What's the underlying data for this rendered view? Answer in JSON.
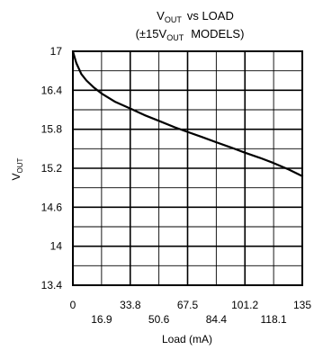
{
  "chart_data": {
    "type": "line",
    "title_line1_main": "V",
    "title_line1_sub": "OUT",
    "title_line1_rest": "vs LOAD",
    "title_line2_pre": "(±15V",
    "title_line2_sub": "OUT",
    "title_line2_rest": "MODELS)",
    "ylabel_main": "V",
    "ylabel_sub": "OUT",
    "xlabel": "Load (mA)",
    "xlim": [
      0,
      135
    ],
    "ylim": [
      13.4,
      17
    ],
    "x_ticks_upper": [
      "0",
      "33.8",
      "67.5",
      "101.2",
      "135"
    ],
    "x_ticks_lower": [
      "16.9",
      "50.6",
      "84.4",
      "118.1"
    ],
    "y_ticks": [
      "17",
      "16.4",
      "15.8",
      "15.2",
      "14.6",
      "14",
      "13.4"
    ],
    "grid": true,
    "series": [
      {
        "x": [
          0,
          2,
          5,
          8,
          12,
          16.9,
          25,
          33.8,
          42,
          50.6,
          60,
          67.5,
          76,
          84.4,
          93,
          101.2,
          110,
          118.1,
          127,
          135
        ],
        "y": [
          17.0,
          16.82,
          16.65,
          16.55,
          16.45,
          16.35,
          16.22,
          16.12,
          16.02,
          15.93,
          15.83,
          15.76,
          15.68,
          15.6,
          15.52,
          15.44,
          15.36,
          15.28,
          15.18,
          15.08
        ]
      }
    ]
  }
}
